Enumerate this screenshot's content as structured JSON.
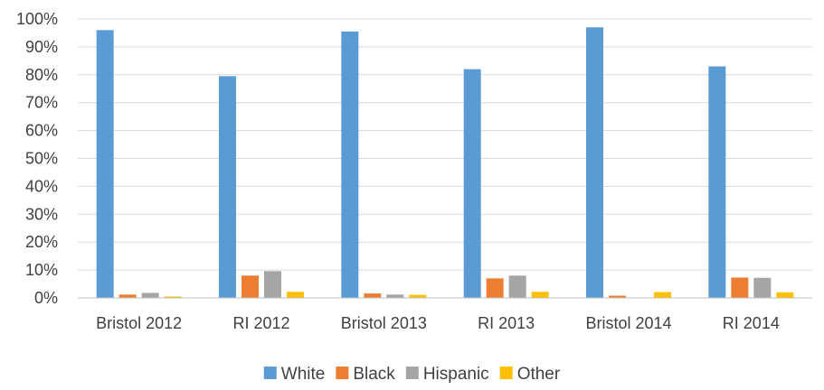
{
  "chart_data": {
    "type": "bar",
    "categories": [
      "Bristol 2012",
      "RI 2012",
      "Bristol 2013",
      "RI 2013",
      "Bristol 2014",
      "RI 2014"
    ],
    "series": [
      {
        "name": "White",
        "color": "#5b9bd5",
        "values": [
          96,
          79.5,
          95.5,
          82,
          97,
          83
        ]
      },
      {
        "name": "Black",
        "color": "#ed7d31",
        "values": [
          1.2,
          8,
          1.6,
          7,
          0.8,
          7.3
        ]
      },
      {
        "name": "Hispanic",
        "color": "#a5a5a5",
        "values": [
          1.8,
          9.6,
          1.2,
          8,
          0,
          7.2
        ]
      },
      {
        "name": "Other",
        "color": "#ffc000",
        "values": [
          0.5,
          2.2,
          1.1,
          2.2,
          2.1,
          2.0
        ]
      }
    ],
    "yticks": [
      "0%",
      "10%",
      "20%",
      "30%",
      "40%",
      "50%",
      "60%",
      "70%",
      "80%",
      "90%",
      "100%"
    ],
    "ylim": [
      0,
      100
    ],
    "ylabel": "",
    "xlabel": "",
    "title": "",
    "grid": true,
    "legend": "bottom-center"
  }
}
